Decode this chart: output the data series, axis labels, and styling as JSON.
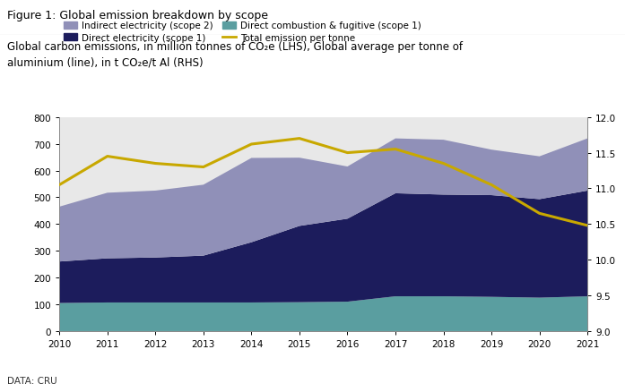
{
  "years": [
    2010,
    2011,
    2012,
    2013,
    2014,
    2015,
    2016,
    2017,
    2018,
    2019,
    2020,
    2021
  ],
  "direct_combustion": [
    105,
    107,
    107,
    107,
    107,
    108,
    110,
    130,
    130,
    128,
    125,
    130
  ],
  "direct_electricity": [
    155,
    165,
    168,
    175,
    225,
    285,
    310,
    385,
    380,
    380,
    368,
    395
  ],
  "indirect_electricity": [
    205,
    245,
    250,
    265,
    315,
    255,
    195,
    205,
    205,
    170,
    160,
    195
  ],
  "total_emission_per_tonne": [
    11.05,
    11.45,
    11.35,
    11.3,
    11.62,
    11.7,
    11.5,
    11.55,
    11.35,
    11.05,
    10.65,
    10.48
  ],
  "stack_colors": [
    "#5a9ea0",
    "#1c1c5c",
    "#9090b8"
  ],
  "line_color": "#c8a800",
  "title_above": "Figure 1: Global emission breakdown by scope",
  "subtitle_line1": "Global carbon emissions, in million tonnes of CO₂e (LHS), Global average per tonne of",
  "subtitle_line2": "aluminium (line), in t CO₂e/t Al (RHS)",
  "legend_labels": [
    "Indirect electricity (scope 2)",
    "Direct electricity (scope 1)",
    "Direct combustion & fugitive (scope 1)",
    "Total emission per tonne"
  ],
  "ylim_left": [
    0,
    800
  ],
  "ylim_right": [
    9.0,
    12.0
  ],
  "yticks_left": [
    0,
    100,
    200,
    300,
    400,
    500,
    600,
    700,
    800
  ],
  "yticks_right": [
    9.0,
    9.5,
    10.0,
    10.5,
    11.0,
    11.5,
    12.0
  ],
  "plot_bg": "#e8e8e8",
  "outer_bg": "#e8e8e8",
  "title_bg": "#ffffff",
  "data_source": "DATA: CRU"
}
